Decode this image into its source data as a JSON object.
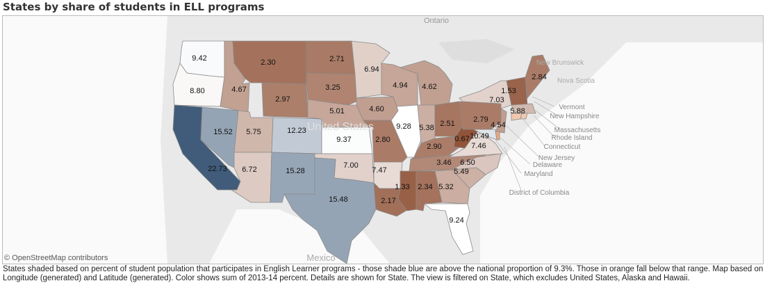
{
  "title": "States by share of students in ELL programs",
  "attribution": "© OpenStreetMap contributors",
  "basemap_labels": {
    "ontario": "Ontario",
    "new_brunswick": "New Brunswick",
    "nova_scotia": "Nova Scotia",
    "united_states": "United States",
    "mexico": "Mexico"
  },
  "callouts": [
    "Vermont",
    "New Hampshire",
    "Massachusetts",
    "Rhode Island",
    "Connecticut",
    "New Jersey",
    "Delaware",
    "Maryland",
    "District of Columbia"
  ],
  "caption": "States shaded based on percent of student population that participates in English Learner programs - those shade blue are above the national proportion of 9.3%.  Those in orange fall below that range.  Map based on Longitude (generated) and Latitude (generated).  Color shows sum of 2013-14 percent.  Details are shown for State. The view is filtered on State, which excludes    United States, Alaska and Hawaii.",
  "color_scale": {
    "midpoint": 9.3,
    "low_color": "#8a4a2e",
    "mid_color": "#ffffff",
    "high_color": "#3e5a78"
  },
  "states": [
    {
      "state": "WA",
      "value": 9.42
    },
    {
      "state": "OR",
      "value": 8.8
    },
    {
      "state": "CA",
      "value": 22.73
    },
    {
      "state": "NV",
      "value": 15.52
    },
    {
      "state": "ID",
      "value": 4.67
    },
    {
      "state": "MT",
      "value": 2.3
    },
    {
      "state": "WY",
      "value": 2.97
    },
    {
      "state": "UT",
      "value": 5.75
    },
    {
      "state": "CO",
      "value": 12.23
    },
    {
      "state": "AZ",
      "value": 6.72
    },
    {
      "state": "NM",
      "value": 15.28
    },
    {
      "state": "ND",
      "value": 2.71
    },
    {
      "state": "SD",
      "value": 3.25
    },
    {
      "state": "NE",
      "value": 5.01
    },
    {
      "state": "KS",
      "value": 9.37
    },
    {
      "state": "OK",
      "value": 7.0
    },
    {
      "state": "TX",
      "value": 15.48
    },
    {
      "state": "MN",
      "value": 6.94
    },
    {
      "state": "IA",
      "value": 4.6
    },
    {
      "state": "MO",
      "value": 2.8
    },
    {
      "state": "AR",
      "value": 7.47
    },
    {
      "state": "LA",
      "value": 2.17
    },
    {
      "state": "WI",
      "value": 4.94
    },
    {
      "state": "IL",
      "value": 9.28
    },
    {
      "state": "MI",
      "value": 4.62
    },
    {
      "state": "IN",
      "value": 5.38
    },
    {
      "state": "OH",
      "value": 2.51
    },
    {
      "state": "KY",
      "value": 2.9
    },
    {
      "state": "TN",
      "value": 3.46
    },
    {
      "state": "MS",
      "value": 1.33
    },
    {
      "state": "AL",
      "value": 2.34
    },
    {
      "state": "GA",
      "value": 5.32
    },
    {
      "state": "FL",
      "value": 9.24
    },
    {
      "state": "SC",
      "value": 5.49
    },
    {
      "state": "NC",
      "value": 6.5
    },
    {
      "state": "VA",
      "value": 7.46
    },
    {
      "state": "WV",
      "value": 0.67
    },
    {
      "state": "MD",
      "value": 10.49
    },
    {
      "state": "PA",
      "value": 2.79
    },
    {
      "state": "NJ",
      "value": 4.54
    },
    {
      "state": "NY",
      "value": 7.03
    },
    {
      "state": "NH",
      "value": 1.53
    },
    {
      "state": "ME",
      "value": 2.84
    },
    {
      "state": "MA",
      "value": 5.88
    }
  ]
}
